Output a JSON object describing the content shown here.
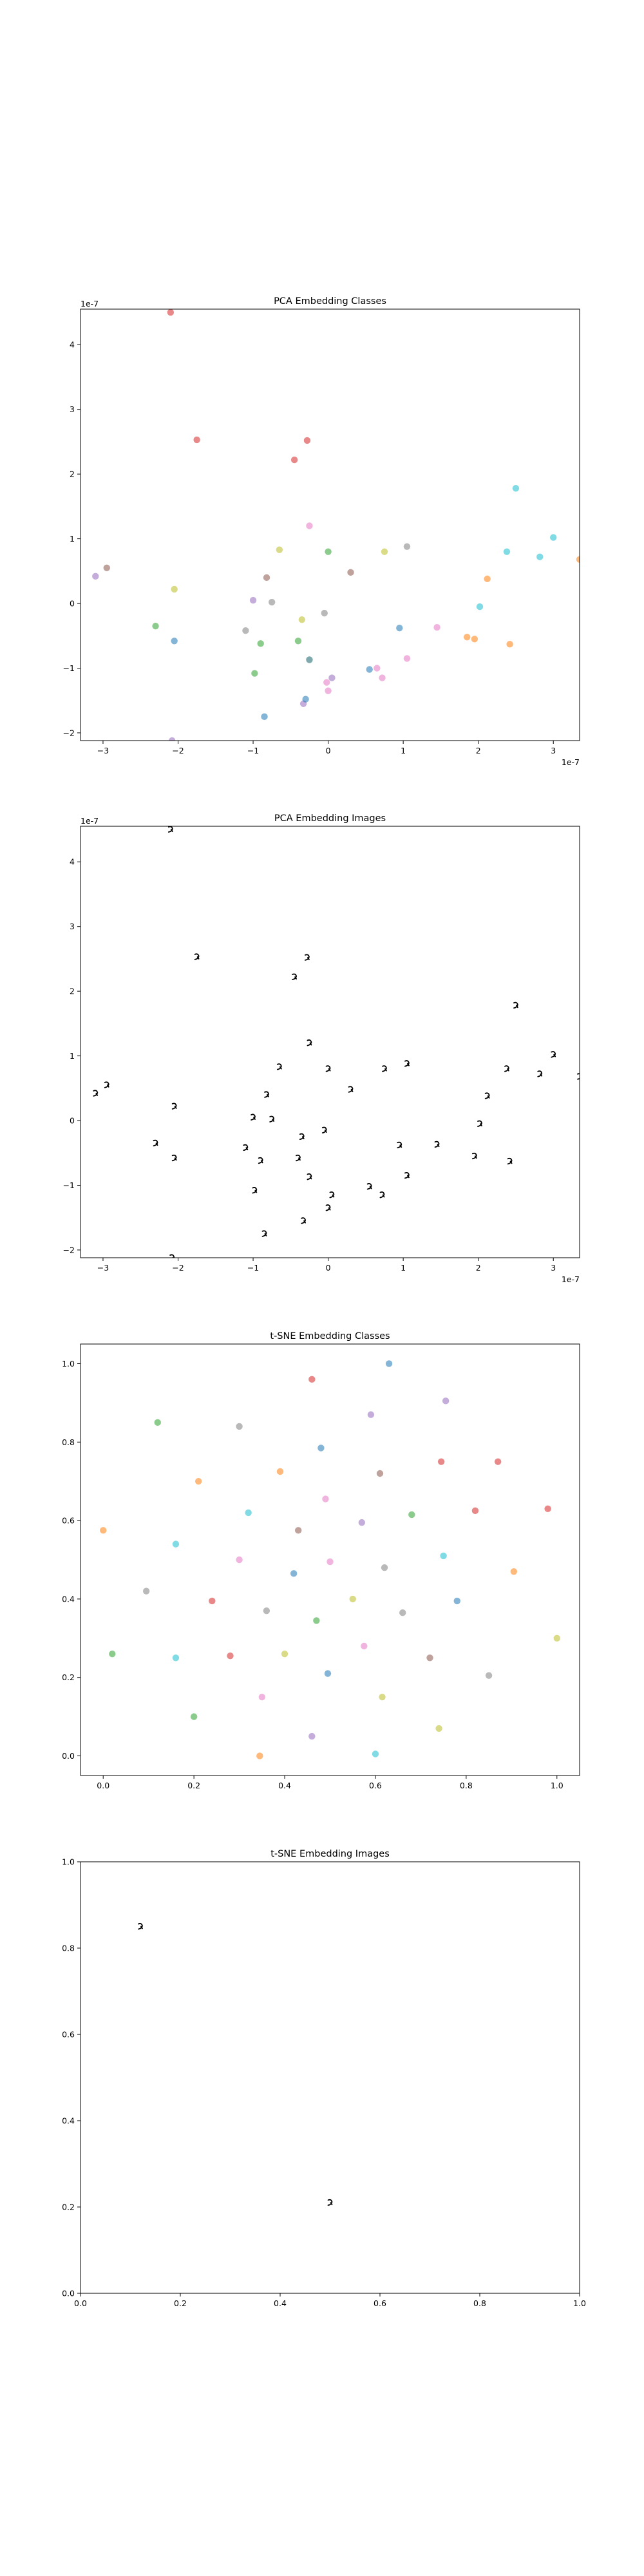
{
  "chart_data": [
    {
      "type": "scatter",
      "title": "PCA Embedding Classes",
      "xlabel": "",
      "ylabel": "",
      "x_multiplier": "1e-7",
      "y_multiplier": "1e-7",
      "xlim": [
        -3.3,
        3.35
      ],
      "ylim": [
        -2.12,
        4.55
      ],
      "xticks": [
        -3,
        -2,
        -1,
        0,
        1,
        2,
        3
      ],
      "yticks": [
        -2,
        -1,
        0,
        1,
        2,
        3,
        4
      ],
      "grid": false,
      "points": [
        {
          "x": -2.1,
          "y": 4.5,
          "color": "#d62728"
        },
        {
          "x": -1.75,
          "y": 2.53,
          "color": "#d62728"
        },
        {
          "x": -0.45,
          "y": 2.22,
          "color": "#d62728"
        },
        {
          "x": -0.28,
          "y": 2.52,
          "color": "#d62728"
        },
        {
          "x": -0.25,
          "y": 1.2,
          "color": "#e377c2"
        },
        {
          "x": -2.95,
          "y": 0.55,
          "color": "#8c564b"
        },
        {
          "x": -3.1,
          "y": 0.42,
          "color": "#9467bd"
        },
        {
          "x": -2.05,
          "y": 0.22,
          "color": "#bcbd22"
        },
        {
          "x": -2.3,
          "y": -0.35,
          "color": "#2ca02c"
        },
        {
          "x": -2.05,
          "y": -0.58,
          "color": "#1f77b4"
        },
        {
          "x": -2.08,
          "y": -2.12,
          "color": "#9467bd"
        },
        {
          "x": -1.1,
          "y": -0.42,
          "color": "#7f7f7f"
        },
        {
          "x": -1.0,
          "y": 0.05,
          "color": "#9467bd"
        },
        {
          "x": -0.82,
          "y": 0.4,
          "color": "#8c564b"
        },
        {
          "x": -0.75,
          "y": 0.02,
          "color": "#7f7f7f"
        },
        {
          "x": -0.65,
          "y": 0.83,
          "color": "#bcbd22"
        },
        {
          "x": -0.98,
          "y": -1.08,
          "color": "#2ca02c"
        },
        {
          "x": -0.9,
          "y": -0.62,
          "color": "#2ca02c"
        },
        {
          "x": -0.85,
          "y": -1.75,
          "color": "#1f77b4"
        },
        {
          "x": -0.4,
          "y": -0.58,
          "color": "#2ca02c"
        },
        {
          "x": -0.35,
          "y": -0.25,
          "color": "#bcbd22"
        },
        {
          "x": -0.25,
          "y": -0.87,
          "color": "#17becf"
        },
        {
          "x": -0.25,
          "y": -0.87,
          "color": "#7f7f7f"
        },
        {
          "x": -0.33,
          "y": -1.55,
          "color": "#9467bd"
        },
        {
          "x": -0.3,
          "y": -1.48,
          "color": "#1f77b4"
        },
        {
          "x": -0.05,
          "y": -0.15,
          "color": "#7f7f7f"
        },
        {
          "x": 0.0,
          "y": 0.8,
          "color": "#2ca02c"
        },
        {
          "x": -0.02,
          "y": -1.22,
          "color": "#e377c2"
        },
        {
          "x": 0.05,
          "y": -1.15,
          "color": "#9467bd"
        },
        {
          "x": 0.0,
          "y": -1.35,
          "color": "#e377c2"
        },
        {
          "x": 0.3,
          "y": 0.48,
          "color": "#8c564b"
        },
        {
          "x": 0.55,
          "y": -1.02,
          "color": "#1f77b4"
        },
        {
          "x": 0.65,
          "y": -1.0,
          "color": "#e377c2"
        },
        {
          "x": 0.72,
          "y": -1.15,
          "color": "#e377c2"
        },
        {
          "x": 0.75,
          "y": 0.8,
          "color": "#bcbd22"
        },
        {
          "x": 0.95,
          "y": -0.38,
          "color": "#1f77b4"
        },
        {
          "x": 1.05,
          "y": 0.88,
          "color": "#7f7f7f"
        },
        {
          "x": 1.05,
          "y": -0.85,
          "color": "#e377c2"
        },
        {
          "x": 1.45,
          "y": -0.37,
          "color": "#e377c2"
        },
        {
          "x": 1.85,
          "y": -0.52,
          "color": "#ff7f0e"
        },
        {
          "x": 1.95,
          "y": -0.55,
          "color": "#ff7f0e"
        },
        {
          "x": 2.02,
          "y": -0.05,
          "color": "#17becf"
        },
        {
          "x": 2.12,
          "y": 0.38,
          "color": "#ff7f0e"
        },
        {
          "x": 2.38,
          "y": 0.8,
          "color": "#17becf"
        },
        {
          "x": 2.42,
          "y": -0.63,
          "color": "#ff7f0e"
        },
        {
          "x": 2.5,
          "y": 1.78,
          "color": "#17becf"
        },
        {
          "x": 2.82,
          "y": 0.72,
          "color": "#17becf"
        },
        {
          "x": 3.0,
          "y": 1.02,
          "color": "#17becf"
        },
        {
          "x": 3.35,
          "y": 0.68,
          "color": "#ff7f0e"
        }
      ]
    },
    {
      "type": "scatter",
      "title": "PCA Embedding Images",
      "xlabel": "",
      "ylabel": "",
      "x_multiplier": "1e-7",
      "y_multiplier": "1e-7",
      "xlim": [
        -3.3,
        3.35
      ],
      "ylim": [
        -2.12,
        4.55
      ],
      "xticks": [
        -3,
        -2,
        -1,
        0,
        1,
        2,
        3
      ],
      "yticks": [
        -2,
        -1,
        0,
        1,
        2,
        3,
        4
      ],
      "grid": false,
      "marker": "digit-image",
      "points": [
        {
          "x": -2.1,
          "y": 4.5
        },
        {
          "x": -1.75,
          "y": 2.53
        },
        {
          "x": -0.45,
          "y": 2.22
        },
        {
          "x": -0.28,
          "y": 2.52
        },
        {
          "x": -0.25,
          "y": 1.2
        },
        {
          "x": -2.95,
          "y": 0.55
        },
        {
          "x": -3.1,
          "y": 0.42
        },
        {
          "x": -2.05,
          "y": 0.22
        },
        {
          "x": -2.3,
          "y": -0.35
        },
        {
          "x": -2.05,
          "y": -0.58
        },
        {
          "x": -2.08,
          "y": -2.12
        },
        {
          "x": -1.1,
          "y": -0.42
        },
        {
          "x": -1.0,
          "y": 0.05
        },
        {
          "x": -0.82,
          "y": 0.4
        },
        {
          "x": -0.75,
          "y": 0.02
        },
        {
          "x": -0.65,
          "y": 0.83
        },
        {
          "x": -0.98,
          "y": -1.08
        },
        {
          "x": -0.9,
          "y": -0.62
        },
        {
          "x": -0.85,
          "y": -1.75
        },
        {
          "x": -0.4,
          "y": -0.58
        },
        {
          "x": -0.35,
          "y": -0.25
        },
        {
          "x": -0.25,
          "y": -0.87
        },
        {
          "x": -0.33,
          "y": -1.55
        },
        {
          "x": -0.05,
          "y": -0.15
        },
        {
          "x": 0.0,
          "y": 0.8
        },
        {
          "x": 0.05,
          "y": -1.15
        },
        {
          "x": 0.0,
          "y": -1.35
        },
        {
          "x": 0.3,
          "y": 0.48
        },
        {
          "x": 0.55,
          "y": -1.02
        },
        {
          "x": 0.72,
          "y": -1.15
        },
        {
          "x": 0.75,
          "y": 0.8
        },
        {
          "x": 0.95,
          "y": -0.38
        },
        {
          "x": 1.05,
          "y": 0.88
        },
        {
          "x": 1.05,
          "y": -0.85
        },
        {
          "x": 1.45,
          "y": -0.37
        },
        {
          "x": 1.95,
          "y": -0.55
        },
        {
          "x": 2.02,
          "y": -0.05
        },
        {
          "x": 2.12,
          "y": 0.38
        },
        {
          "x": 2.38,
          "y": 0.8
        },
        {
          "x": 2.42,
          "y": -0.63
        },
        {
          "x": 2.5,
          "y": 1.78
        },
        {
          "x": 2.82,
          "y": 0.72
        },
        {
          "x": 3.0,
          "y": 1.02
        },
        {
          "x": 3.35,
          "y": 0.68
        }
      ]
    },
    {
      "type": "scatter",
      "title": "t-SNE Embedding Classes",
      "xlabel": "",
      "ylabel": "",
      "xlim": [
        -0.05,
        1.05
      ],
      "ylim": [
        -0.05,
        1.05
      ],
      "xticks": [
        0.0,
        0.2,
        0.4,
        0.6,
        0.8,
        1.0
      ],
      "yticks": [
        0.0,
        0.2,
        0.4,
        0.6,
        0.8,
        1.0
      ],
      "grid": false,
      "points": [
        {
          "x": 0.0,
          "y": 0.575,
          "color": "#ff7f0e"
        },
        {
          "x": 0.02,
          "y": 0.26,
          "color": "#2ca02c"
        },
        {
          "x": 0.095,
          "y": 0.42,
          "color": "#7f7f7f"
        },
        {
          "x": 0.12,
          "y": 0.85,
          "color": "#2ca02c"
        },
        {
          "x": 0.16,
          "y": 0.54,
          "color": "#17becf"
        },
        {
          "x": 0.16,
          "y": 0.25,
          "color": "#17becf"
        },
        {
          "x": 0.2,
          "y": 0.1,
          "color": "#2ca02c"
        },
        {
          "x": 0.21,
          "y": 0.7,
          "color": "#ff7f0e"
        },
        {
          "x": 0.24,
          "y": 0.395,
          "color": "#d62728"
        },
        {
          "x": 0.28,
          "y": 0.255,
          "color": "#d62728"
        },
        {
          "x": 0.3,
          "y": 0.84,
          "color": "#7f7f7f"
        },
        {
          "x": 0.3,
          "y": 0.5,
          "color": "#e377c2"
        },
        {
          "x": 0.32,
          "y": 0.62,
          "color": "#17becf"
        },
        {
          "x": 0.345,
          "y": 0.0,
          "color": "#ff7f0e"
        },
        {
          "x": 0.35,
          "y": 0.15,
          "color": "#e377c2"
        },
        {
          "x": 0.36,
          "y": 0.37,
          "color": "#7f7f7f"
        },
        {
          "x": 0.39,
          "y": 0.725,
          "color": "#ff7f0e"
        },
        {
          "x": 0.4,
          "y": 0.26,
          "color": "#bcbd22"
        },
        {
          "x": 0.42,
          "y": 0.465,
          "color": "#1f77b4"
        },
        {
          "x": 0.43,
          "y": 0.575,
          "color": "#8c564b"
        },
        {
          "x": 0.46,
          "y": 0.96,
          "color": "#d62728"
        },
        {
          "x": 0.46,
          "y": 0.05,
          "color": "#9467bd"
        },
        {
          "x": 0.47,
          "y": 0.345,
          "color": "#2ca02c"
        },
        {
          "x": 0.48,
          "y": 0.785,
          "color": "#1f77b4"
        },
        {
          "x": 0.49,
          "y": 0.655,
          "color": "#e377c2"
        },
        {
          "x": 0.495,
          "y": 0.21,
          "color": "#1f77b4"
        },
        {
          "x": 0.5,
          "y": 0.495,
          "color": "#e377c2"
        },
        {
          "x": 0.55,
          "y": 0.4,
          "color": "#bcbd22"
        },
        {
          "x": 0.57,
          "y": 0.595,
          "color": "#9467bd"
        },
        {
          "x": 0.575,
          "y": 0.28,
          "color": "#e377c2"
        },
        {
          "x": 0.59,
          "y": 0.87,
          "color": "#9467bd"
        },
        {
          "x": 0.6,
          "y": 0.005,
          "color": "#17becf"
        },
        {
          "x": 0.61,
          "y": 0.72,
          "color": "#8c564b"
        },
        {
          "x": 0.615,
          "y": 0.15,
          "color": "#bcbd22"
        },
        {
          "x": 0.62,
          "y": 0.48,
          "color": "#7f7f7f"
        },
        {
          "x": 0.63,
          "y": 1.0,
          "color": "#1f77b4"
        },
        {
          "x": 0.66,
          "y": 0.365,
          "color": "#7f7f7f"
        },
        {
          "x": 0.68,
          "y": 0.615,
          "color": "#2ca02c"
        },
        {
          "x": 0.72,
          "y": 0.25,
          "color": "#8c564b"
        },
        {
          "x": 0.74,
          "y": 0.07,
          "color": "#bcbd22"
        },
        {
          "x": 0.745,
          "y": 0.75,
          "color": "#d62728"
        },
        {
          "x": 0.75,
          "y": 0.51,
          "color": "#17becf"
        },
        {
          "x": 0.755,
          "y": 0.905,
          "color": "#9467bd"
        },
        {
          "x": 0.78,
          "y": 0.395,
          "color": "#1f77b4"
        },
        {
          "x": 0.82,
          "y": 0.625,
          "color": "#d62728"
        },
        {
          "x": 0.85,
          "y": 0.205,
          "color": "#7f7f7f"
        },
        {
          "x": 0.87,
          "y": 0.75,
          "color": "#d62728"
        },
        {
          "x": 0.905,
          "y": 0.47,
          "color": "#ff7f0e"
        },
        {
          "x": 0.98,
          "y": 0.63,
          "color": "#d62728"
        },
        {
          "x": 1.0,
          "y": 0.3,
          "color": "#bcbd22"
        }
      ]
    },
    {
      "type": "scatter",
      "title": "t-SNE Embedding Images",
      "xlabel": "",
      "ylabel": "",
      "xlim": [
        0.0,
        1.0
      ],
      "ylim": [
        0.0,
        1.0
      ],
      "xticks": [
        0.0,
        0.2,
        0.4,
        0.6,
        0.8,
        1.0
      ],
      "yticks": [
        0.0,
        0.2,
        0.4,
        0.6,
        0.8,
        1.0
      ],
      "grid": false,
      "marker": "digit-image",
      "points": [
        {
          "x": 0.12,
          "y": 0.85
        },
        {
          "x": 0.5,
          "y": 0.21
        }
      ]
    }
  ]
}
